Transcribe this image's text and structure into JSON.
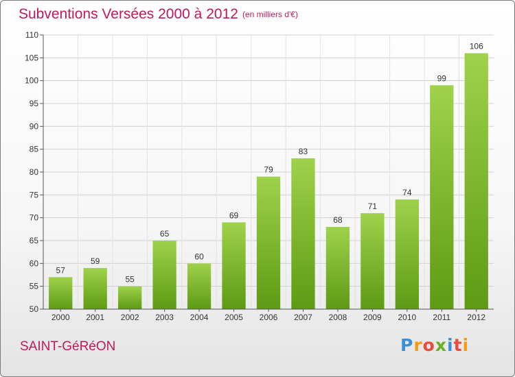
{
  "title": "Subventions Versées 2000 à 2012",
  "subtitle": "(en milliers d'€)",
  "commune": "SAINT-GéRéON",
  "logo": {
    "letters": [
      "P",
      "r",
      "o",
      "x",
      "i",
      "t",
      "i"
    ],
    "colors": [
      "#3a8fd6",
      "#f39c12",
      "#e74c3c",
      "#6ab023",
      "#3a8fd6",
      "#e74c3c",
      "#f39c12"
    ]
  },
  "colors": {
    "bar_top": "#9fd24a",
    "bar_bottom": "#5e9a14",
    "accent": "#c2185b",
    "grid": "#d0d0d0"
  },
  "chart_data": {
    "type": "bar",
    "categories": [
      "2000",
      "2001",
      "2002",
      "2003",
      "2004",
      "2005",
      "2006",
      "2007",
      "2008",
      "2009",
      "2010",
      "2011",
      "2012"
    ],
    "values": [
      57,
      59,
      55,
      65,
      60,
      69,
      79,
      83,
      68,
      71,
      74,
      99,
      106
    ],
    "ylim": [
      50,
      110
    ],
    "yticks": [
      50,
      55,
      60,
      65,
      70,
      75,
      80,
      85,
      90,
      95,
      100,
      105,
      110
    ],
    "grid": true
  }
}
